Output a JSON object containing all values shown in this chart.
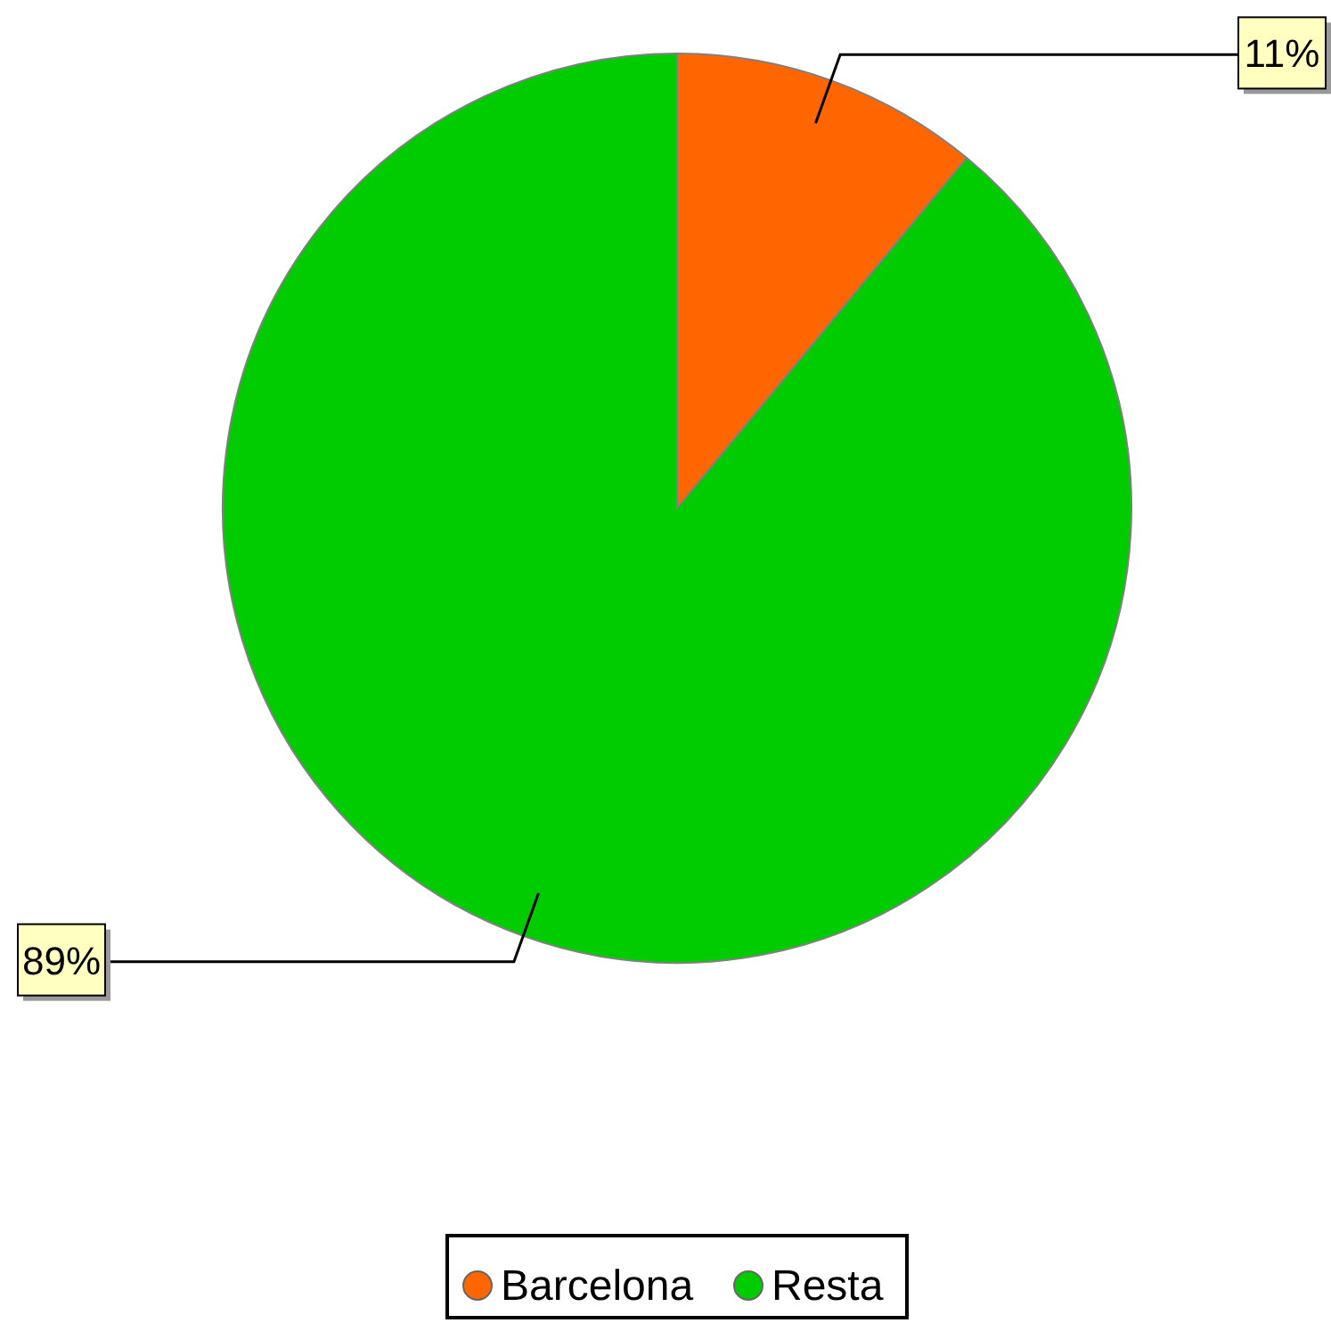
{
  "chart_data": {
    "type": "pie",
    "categories": [
      "Barcelona",
      "Resta"
    ],
    "values": [
      11,
      89
    ],
    "colors": [
      "#ff6600",
      "#00cc00"
    ],
    "value_labels": [
      "11%",
      "89%"
    ],
    "legend": "bottom"
  }
}
